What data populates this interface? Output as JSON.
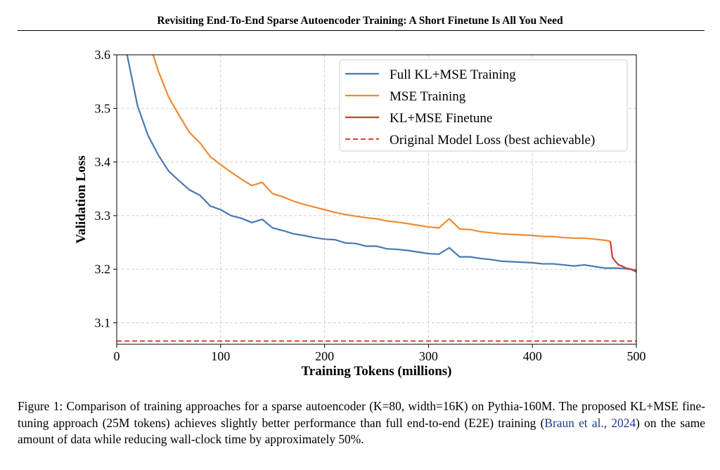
{
  "header": {
    "title": "Revisiting End-To-End Sparse Autoencoder Training: A Short Finetune Is All You Need"
  },
  "caption": {
    "prefix": "Figure 1: Comparison of training approaches for a sparse autoencoder (K=80, width=16K) on Pythia-160M. The proposed KL+MSE fine-tuning approach (25M tokens) achieves slightly better performance than full end-to-end (E2E) training (",
    "citation": "Braun et al., 2024",
    "suffix": ") on the same amount of data while reducing wall-clock time by approximately 50%."
  },
  "chart_data": {
    "type": "line",
    "title": "",
    "xlabel": "Training Tokens (millions)",
    "ylabel": "Validation Loss",
    "xlim": [
      0,
      500
    ],
    "ylim": [
      3.06,
      3.6
    ],
    "xticks": [
      0,
      100,
      200,
      300,
      400,
      500
    ],
    "yticks": [
      3.1,
      3.2,
      3.3,
      3.4,
      3.5,
      3.6
    ],
    "xtick_labels": [
      "0",
      "100",
      "200",
      "300",
      "400",
      "500"
    ],
    "ytick_labels": [
      "3.1",
      "3.2",
      "3.3",
      "3.4",
      "3.5",
      "3.6"
    ],
    "grid": true,
    "legend_position": "top-right",
    "series": [
      {
        "name": "Full KL+MSE Training",
        "color": "#4878b0",
        "style": "solid",
        "x": [
          10,
          20,
          30,
          40,
          50,
          60,
          70,
          80,
          90,
          100,
          110,
          120,
          130,
          140,
          150,
          160,
          170,
          180,
          190,
          200,
          210,
          220,
          230,
          240,
          250,
          260,
          270,
          280,
          290,
          300,
          310,
          320,
          330,
          340,
          350,
          360,
          370,
          380,
          390,
          400,
          410,
          420,
          430,
          440,
          450,
          460,
          470,
          480,
          490,
          500
        ],
        "y": [
          3.6,
          3.505,
          3.45,
          3.413,
          3.383,
          3.365,
          3.348,
          3.338,
          3.318,
          3.311,
          3.3,
          3.295,
          3.287,
          3.293,
          3.277,
          3.272,
          3.266,
          3.263,
          3.259,
          3.256,
          3.255,
          3.249,
          3.248,
          3.243,
          3.243,
          3.238,
          3.237,
          3.235,
          3.232,
          3.229,
          3.228,
          3.24,
          3.223,
          3.223,
          3.22,
          3.218,
          3.215,
          3.214,
          3.213,
          3.212,
          3.21,
          3.21,
          3.208,
          3.206,
          3.208,
          3.205,
          3.202,
          3.202,
          3.201,
          3.198
        ]
      },
      {
        "name": "MSE Training",
        "color": "#ef8a32",
        "style": "solid",
        "x": [
          35,
          40,
          50,
          60,
          70,
          80,
          90,
          100,
          110,
          120,
          130,
          140,
          150,
          160,
          170,
          180,
          190,
          200,
          210,
          220,
          230,
          240,
          250,
          260,
          270,
          280,
          290,
          300,
          310,
          320,
          330,
          340,
          350,
          360,
          370,
          380,
          390,
          400,
          410,
          420,
          430,
          440,
          450,
          460,
          470,
          475
        ],
        "y": [
          3.6,
          3.57,
          3.521,
          3.487,
          3.455,
          3.436,
          3.41,
          3.395,
          3.381,
          3.368,
          3.356,
          3.362,
          3.341,
          3.335,
          3.327,
          3.321,
          3.316,
          3.311,
          3.306,
          3.302,
          3.299,
          3.296,
          3.294,
          3.29,
          3.288,
          3.285,
          3.282,
          3.279,
          3.277,
          3.294,
          3.275,
          3.274,
          3.27,
          3.268,
          3.266,
          3.265,
          3.264,
          3.263,
          3.261,
          3.261,
          3.259,
          3.258,
          3.258,
          3.256,
          3.254,
          3.252
        ]
      },
      {
        "name": "KL+MSE Finetune",
        "color": "#d03a32",
        "style": "solid",
        "x": [
          475,
          477,
          480,
          483,
          486,
          490,
          493,
          496,
          500
        ],
        "y": [
          3.252,
          3.222,
          3.214,
          3.208,
          3.206,
          3.202,
          3.201,
          3.199,
          3.195
        ]
      },
      {
        "name": "Original Model Loss (best achievable)",
        "color": "#e0493a",
        "style": "dashed",
        "x": [
          0,
          500
        ],
        "y": [
          3.066,
          3.066
        ]
      }
    ]
  }
}
